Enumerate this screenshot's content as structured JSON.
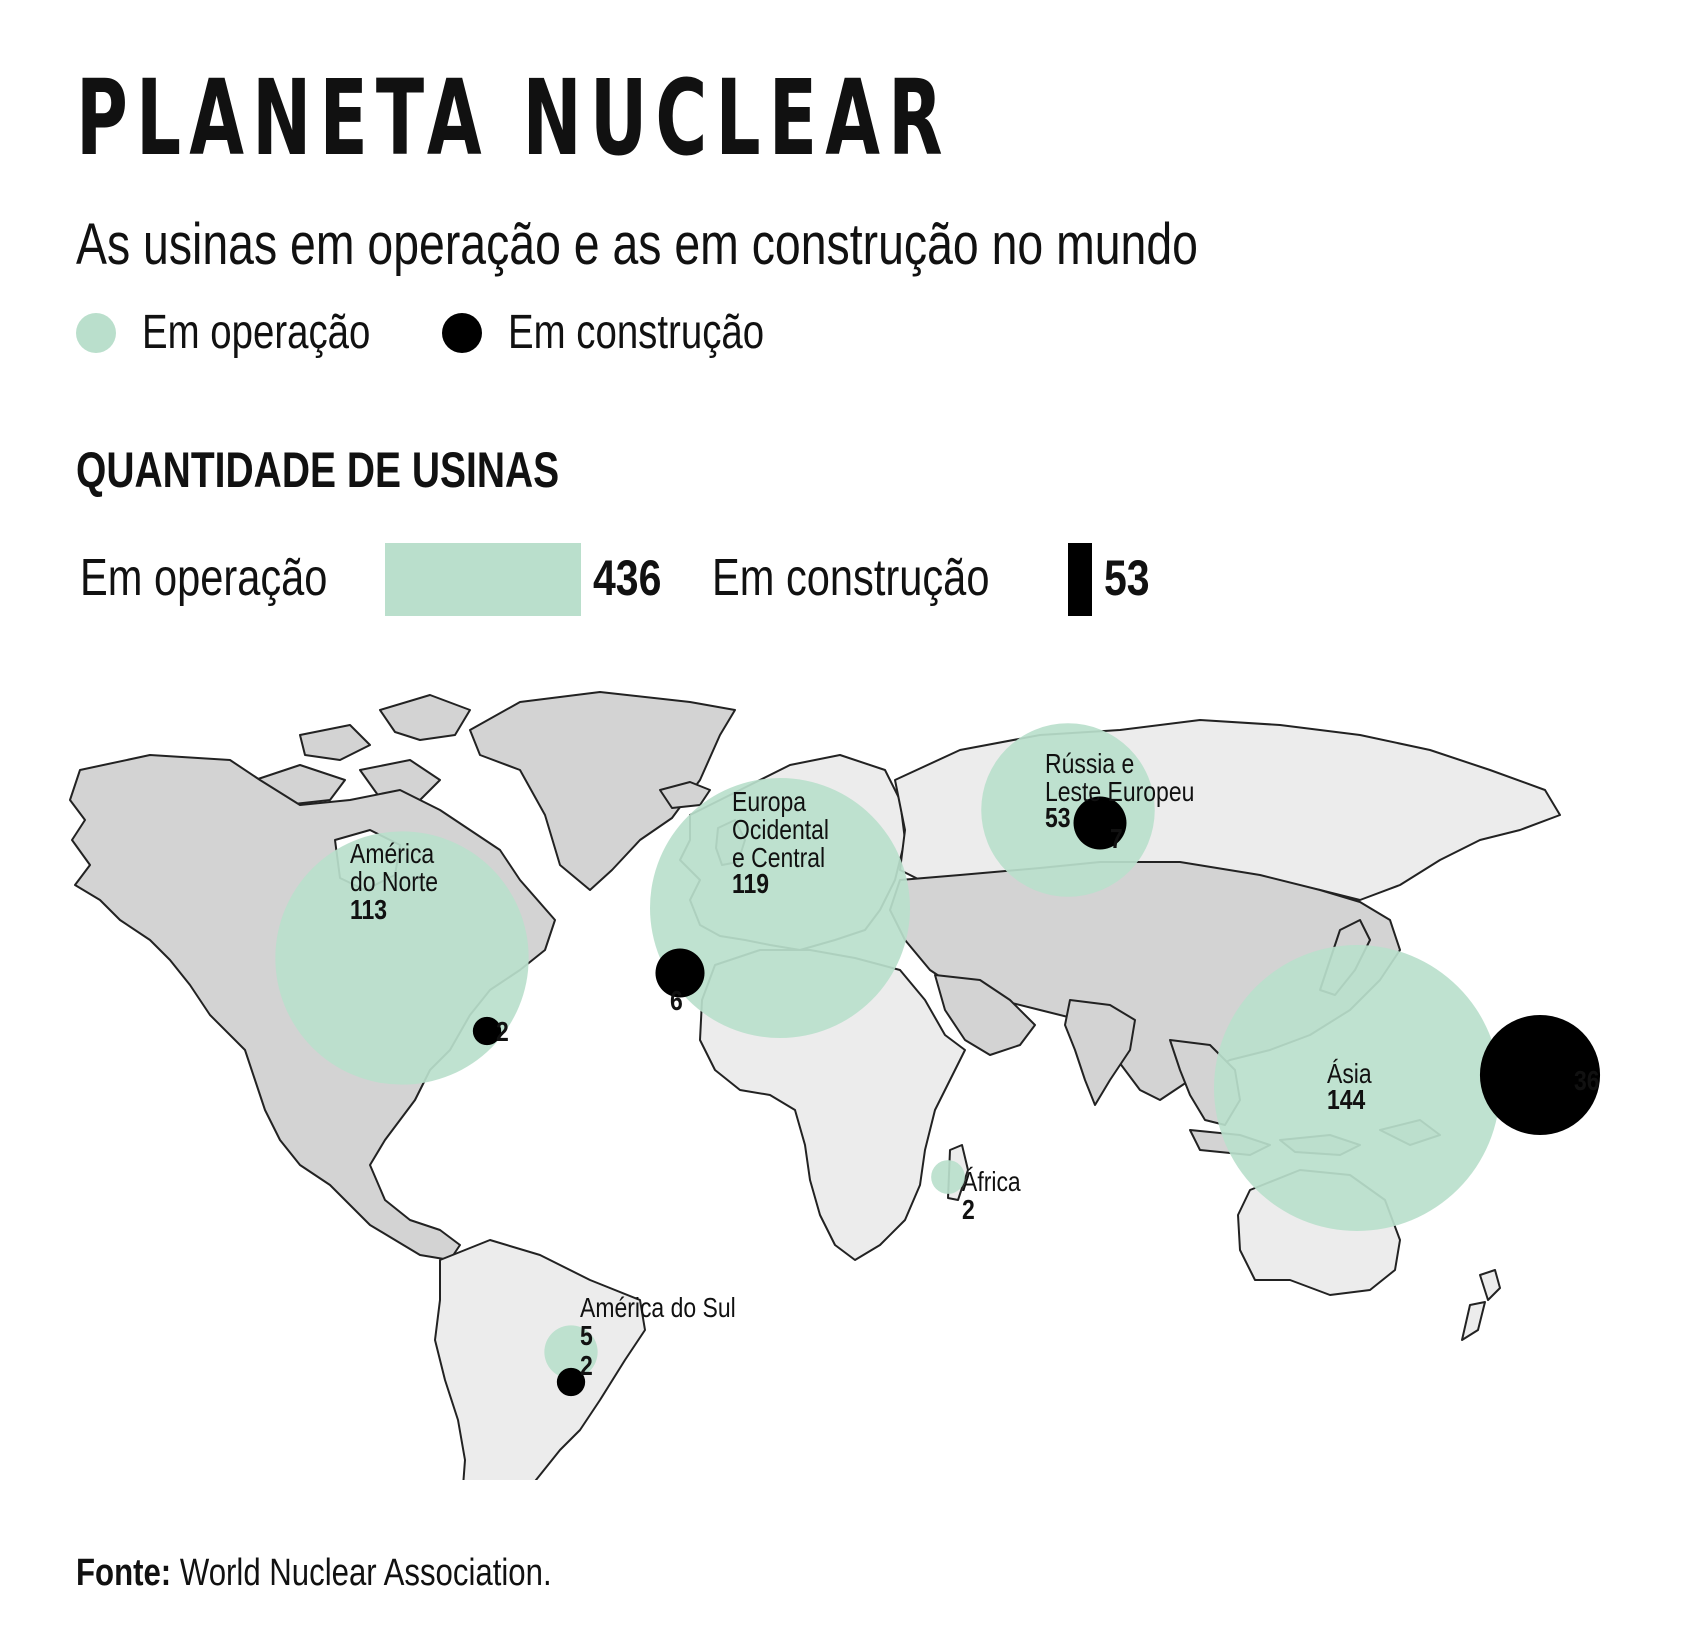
{
  "title": "PLANETA NUCLEAR",
  "subtitle": "As usinas em operação e as em construção no mundo",
  "colors": {
    "operation": "#badfcc",
    "construction": "#000000",
    "land_dark": "#d3d3d3",
    "land_light": "#ececec",
    "border": "#222222"
  },
  "legend": [
    {
      "label": "Em operação",
      "color": "#badfcc"
    },
    {
      "label": "Em construção",
      "color": "#000000"
    }
  ],
  "summary": {
    "heading": "QUANTIDADE DE USINAS",
    "operation": {
      "label": "Em operação",
      "value": 436
    },
    "construction": {
      "label": "Em construção",
      "value": 53
    }
  },
  "chart_data": {
    "type": "map-bubble",
    "series": [
      {
        "name": "Em operação",
        "color": "#badfcc"
      },
      {
        "name": "Em construção",
        "color": "#000000"
      }
    ],
    "regions": [
      {
        "name": "América\ndo Norte",
        "operation": 113,
        "construction": 2
      },
      {
        "name": "Europa\nOcidental\ne Central",
        "operation": 119,
        "construction": 6
      },
      {
        "name": "Rússia e\nLeste Europeu",
        "operation": 53,
        "construction": 7
      },
      {
        "name": "Ásia",
        "operation": 144,
        "construction": 36
      },
      {
        "name": "África",
        "operation": 2,
        "construction": 0
      },
      {
        "name": "América do Sul",
        "operation": 5,
        "construction": 2
      }
    ]
  },
  "source": {
    "prefix": "Fonte:",
    "text": "World Nuclear Association."
  }
}
